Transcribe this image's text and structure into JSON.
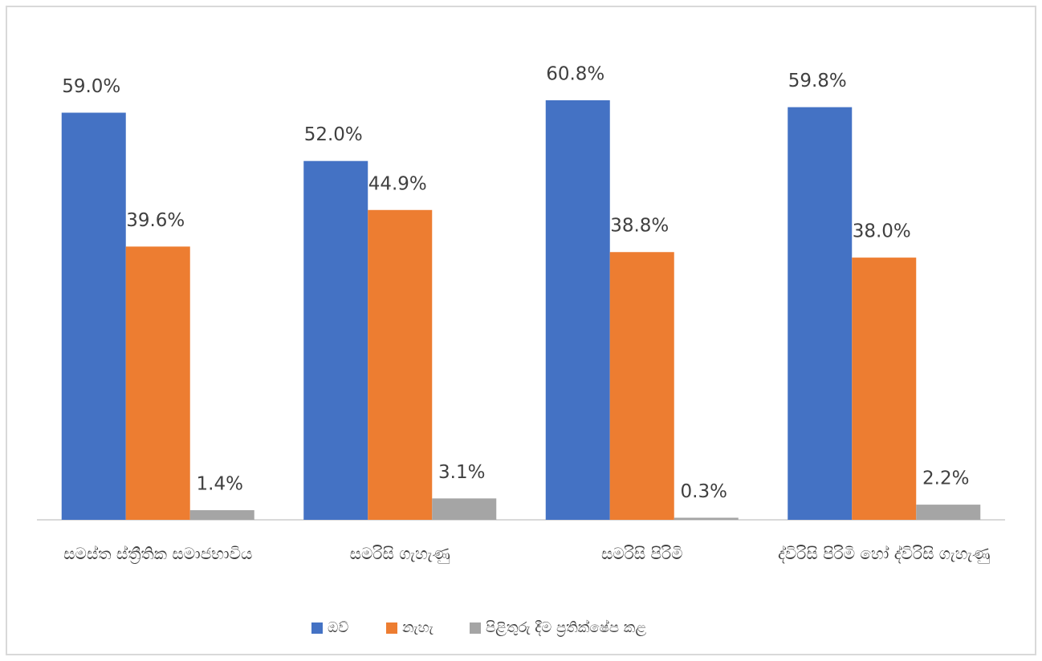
{
  "chart_data": {
    "type": "bar",
    "categories": [
      "සමස්ත ස්ත්‍රීතික සමාජභාවිය",
      "සමරිසි ගැහැණු",
      "සමරිසි පිරිමි",
      "ද්විරිසි පිරිමි හෝ ද්විරිසි ගැහැණු"
    ],
    "series": [
      {
        "name": "ඔව්",
        "color": "#4472c4",
        "values": [
          59.0,
          52.0,
          60.8,
          59.8
        ],
        "value_labels": [
          "59.0%",
          "52.0%",
          "60.8%",
          "59.8%"
        ]
      },
      {
        "name": "නැහැ",
        "color": "#ed7d31",
        "values": [
          39.6,
          44.9,
          38.8,
          38.0
        ],
        "value_labels": [
          "39.6%",
          "44.9%",
          "38.8%",
          "38.0%"
        ]
      },
      {
        "name": "පිළිතුරු දීම ප්‍රතික්ෂේප කළ",
        "color": "#a5a5a5",
        "values": [
          1.4,
          3.1,
          0.3,
          2.2
        ],
        "value_labels": [
          "1.4%",
          "3.1%",
          "0.3%",
          "2.2%"
        ]
      }
    ],
    "legend": "bottom"
  }
}
